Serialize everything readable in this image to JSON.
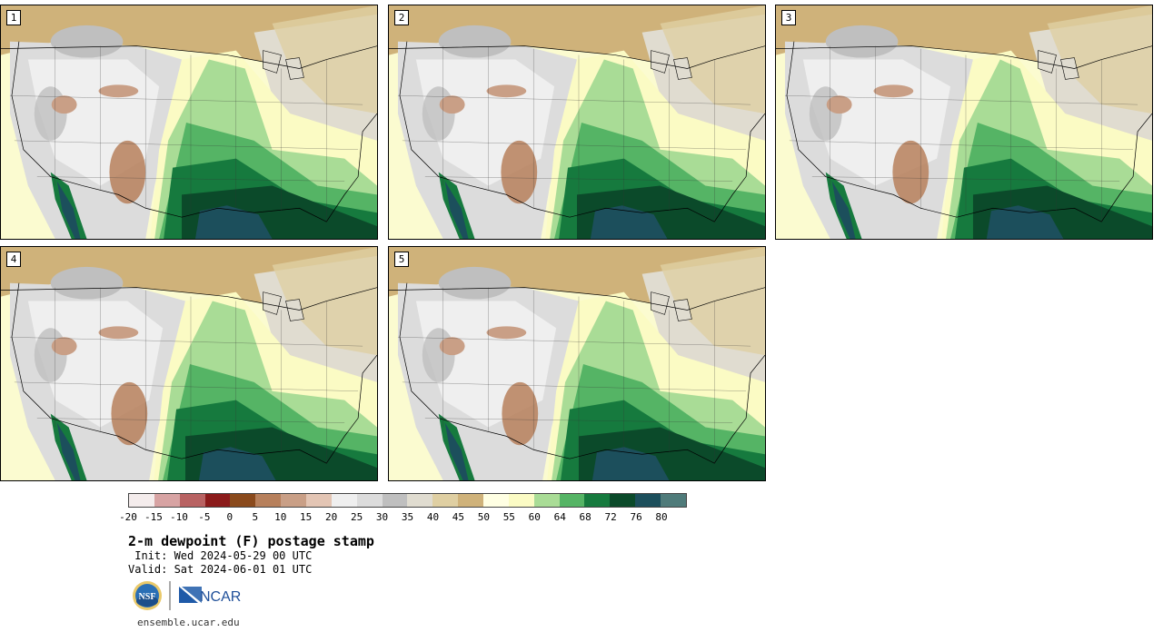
{
  "panels": [
    {
      "label": "1",
      "variant": 0
    },
    {
      "label": "2",
      "variant": 1
    },
    {
      "label": "3",
      "variant": 2
    },
    {
      "label": "4",
      "variant": 3
    },
    {
      "label": "5",
      "variant": 4
    }
  ],
  "legend": {
    "colors": [
      "#f4ecec",
      "#d7a3a3",
      "#b86262",
      "#8b1b1b",
      "#8a4a1c",
      "#b7805c",
      "#c99f86",
      "#e3c5b4",
      "#efefef",
      "#dcdcdc",
      "#bfbfbf",
      "#e0dcd0",
      "#dfcfa2",
      "#cfb27a",
      "#ffffe3",
      "#fbfbc4",
      "#a9dc96",
      "#55b465",
      "#167a3e",
      "#0b4a2a",
      "#1c4f5c",
      "#4f7b7a"
    ],
    "ticks": [
      "-20",
      "-15",
      "-10",
      "-5",
      "0",
      "5",
      "10",
      "15",
      "20",
      "25",
      "30",
      "35",
      "40",
      "45",
      "50",
      "55",
      "60",
      "64",
      "68",
      "72",
      "76",
      "80"
    ]
  },
  "title": "2-m dewpoint (F) postage stamp",
  "init": " Init: Wed 2024-05-29 00 UTC",
  "valid": "Valid: Sat 2024-06-01 01 UTC",
  "logos": {
    "nsf": "NSF",
    "ncar": "NCAR"
  },
  "url": "ensemble.ucar.edu"
}
